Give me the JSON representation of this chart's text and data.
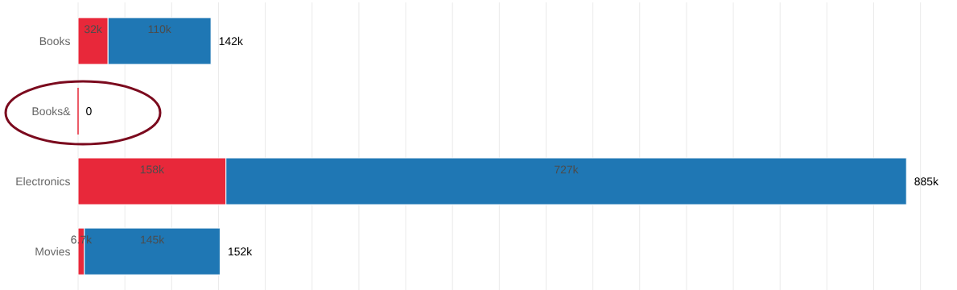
{
  "chart_data": {
    "type": "bar",
    "orientation": "horizontal",
    "stacked": true,
    "categories": [
      "Books",
      "Books&",
      "Electronics",
      "Movies"
    ],
    "series": [
      {
        "color": "#e8283a",
        "values": [
          32000,
          0,
          158000,
          6700
        ],
        "value_labels": [
          "32k",
          null,
          "158k",
          "6.7k"
        ]
      },
      {
        "color": "#1f77b4",
        "values": [
          110000,
          null,
          727000,
          145000
        ],
        "value_labels": [
          "110k",
          null,
          "727k",
          "145k"
        ]
      }
    ],
    "totals": [
      "142k",
      "0",
      "885k",
      "152k"
    ],
    "xlim": [
      0,
      900000
    ],
    "xticks": [
      {
        "value": 0,
        "label": null
      },
      {
        "value": 50000,
        "label": null
      },
      {
        "value": 100000,
        "label": null
      },
      {
        "value": 150000,
        "label": null
      },
      {
        "value": 200000,
        "label": null
      },
      {
        "value": 250000,
        "label": null
      },
      {
        "value": 300000,
        "label": null
      },
      {
        "value": 350000,
        "label": null
      },
      {
        "value": 400000,
        "label": null
      },
      {
        "value": 450000,
        "label": null
      },
      {
        "value": 500000,
        "label": null
      },
      {
        "value": 550000,
        "label": null
      },
      {
        "value": 600000,
        "label": null
      },
      {
        "value": 650000,
        "label": null
      },
      {
        "value": 700000,
        "label": null
      },
      {
        "value": 750000,
        "label": null
      },
      {
        "value": 800000,
        "label": null
      },
      {
        "value": 850000,
        "label": null
      },
      {
        "value": 900000,
        "label": null
      }
    ],
    "grid": "x",
    "tick_labels": "y"
  }
}
